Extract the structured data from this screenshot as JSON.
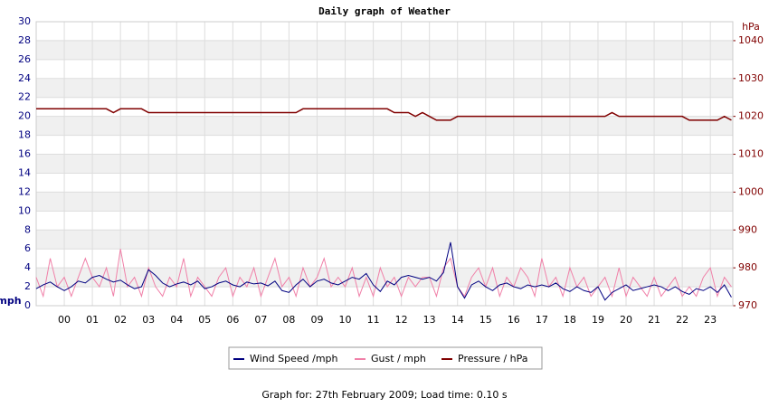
{
  "chart_data": {
    "type": "line",
    "title": "Daily graph of Weather",
    "y_label": "mph",
    "y2_label": "hPa",
    "footer": "Graph for: 27th February 2009; Load time: 0.10 s",
    "xlim": [
      -1,
      23.8
    ],
    "xticks": [
      {
        "value": 0,
        "label": "00"
      },
      {
        "value": 1,
        "label": "01"
      },
      {
        "value": 2,
        "label": "02"
      },
      {
        "value": 3,
        "label": "03"
      },
      {
        "value": 4,
        "label": "04"
      },
      {
        "value": 5,
        "label": "05"
      },
      {
        "value": 6,
        "label": "06"
      },
      {
        "value": 7,
        "label": "07"
      },
      {
        "value": 8,
        "label": "08"
      },
      {
        "value": 9,
        "label": "09"
      },
      10,
      11,
      12,
      13,
      14,
      15,
      16,
      17,
      18,
      19,
      20,
      21,
      22,
      23
    ],
    "ylim": [
      0,
      30
    ],
    "yticks": [
      0,
      2,
      4,
      6,
      8,
      10,
      12,
      14,
      16,
      18,
      20,
      22,
      24,
      26,
      28,
      30
    ],
    "y2lim": [
      970,
      1045
    ],
    "y2ticks": [
      970,
      980,
      990,
      1000,
      1010,
      1020,
      1030,
      1040
    ],
    "grid": true,
    "x": [
      -1,
      -0.75,
      -0.5,
      -0.25,
      0,
      0.25,
      0.5,
      0.75,
      1,
      1.25,
      1.5,
      1.75,
      2,
      2.25,
      2.5,
      2.75,
      3,
      3.25,
      3.5,
      3.75,
      4,
      4.25,
      4.5,
      4.75,
      5,
      5.25,
      5.5,
      5.75,
      6,
      6.25,
      6.5,
      6.75,
      7,
      7.25,
      7.5,
      7.75,
      8,
      8.25,
      8.5,
      8.75,
      9,
      9.25,
      9.5,
      9.75,
      10,
      10.25,
      10.5,
      10.75,
      11,
      11.25,
      11.5,
      11.75,
      12,
      12.25,
      12.5,
      12.75,
      13,
      13.25,
      13.5,
      13.75,
      14,
      14.25,
      14.5,
      14.75,
      15,
      15.25,
      15.5,
      15.75,
      16,
      16.25,
      16.5,
      16.75,
      17,
      17.25,
      17.5,
      17.75,
      18,
      18.25,
      18.5,
      18.75,
      19,
      19.25,
      19.5,
      19.75,
      20,
      20.25,
      20.5,
      20.75,
      21,
      21.25,
      21.5,
      21.75,
      22,
      22.25,
      22.5,
      22.75,
      23,
      23.25,
      23.5,
      23.75
    ],
    "series": [
      {
        "name": "Gust / mph",
        "color": "#f080a8",
        "values": [
          3,
          1,
          5,
          2,
          3,
          1,
          3,
          5,
          3,
          2,
          4,
          1,
          6,
          2,
          3,
          1,
          4,
          2,
          1,
          3,
          2,
          5,
          1,
          3,
          2,
          1,
          3,
          4,
          1,
          3,
          2,
          4,
          1,
          3,
          5,
          2,
          3,
          1,
          4,
          2,
          3,
          5,
          2,
          3,
          2,
          4,
          1,
          3,
          1,
          4,
          2,
          3,
          1,
          3,
          2,
          3,
          3,
          1,
          4,
          5,
          2,
          1,
          3,
          4,
          2,
          4,
          1,
          3,
          2,
          4,
          3,
          1,
          5,
          2,
          3,
          1,
          4,
          2,
          3,
          1,
          2,
          3,
          1,
          4,
          1,
          3,
          2,
          1,
          3,
          1,
          2,
          3,
          1,
          2,
          1,
          3,
          4,
          1,
          3,
          2
        ]
      },
      {
        "name": "Wind Speed /mph",
        "color": "#000080",
        "values": [
          1.8,
          2.2,
          2.5,
          2.0,
          1.6,
          2.0,
          2.6,
          2.4,
          3.0,
          3.2,
          2.8,
          2.5,
          2.7,
          2.2,
          1.8,
          2.0,
          3.8,
          3.2,
          2.4,
          2.0,
          2.3,
          2.5,
          2.2,
          2.6,
          1.8,
          2.0,
          2.4,
          2.6,
          2.2,
          2.0,
          2.5,
          2.3,
          2.4,
          2.1,
          2.6,
          1.6,
          1.4,
          2.2,
          2.8,
          2.0,
          2.6,
          2.8,
          2.4,
          2.2,
          2.6,
          3.0,
          2.8,
          3.4,
          2.2,
          1.5,
          2.6,
          2.2,
          3.0,
          3.2,
          3.0,
          2.8,
          3.0,
          2.6,
          3.5,
          6.7,
          2.0,
          0.8,
          2.2,
          2.6,
          2.0,
          1.6,
          2.2,
          2.4,
          2.0,
          1.8,
          2.2,
          2.0,
          2.2,
          2.0,
          2.4,
          1.8,
          1.5,
          2.0,
          1.6,
          1.4,
          2.0,
          0.6,
          1.4,
          1.8,
          2.2,
          1.6,
          1.8,
          2.0,
          2.2,
          2.0,
          1.6,
          2.0,
          1.5,
          1.2,
          1.8,
          1.6,
          2.0,
          1.4,
          2.2,
          0.9
        ]
      },
      {
        "name": "Pressure / hPa",
        "color": "#800000",
        "axis": "y2",
        "values": [
          1022,
          1022,
          1022,
          1022,
          1022,
          1022,
          1022,
          1022,
          1022,
          1022,
          1022,
          1021,
          1022,
          1022,
          1022,
          1022,
          1021,
          1021,
          1021,
          1021,
          1021,
          1021,
          1021,
          1021,
          1021,
          1021,
          1021,
          1021,
          1021,
          1021,
          1021,
          1021,
          1021,
          1021,
          1021,
          1021,
          1021,
          1021,
          1022,
          1022,
          1022,
          1022,
          1022,
          1022,
          1022,
          1022,
          1022,
          1022,
          1022,
          1022,
          1022,
          1021,
          1021,
          1021,
          1020,
          1021,
          1020,
          1019,
          1019,
          1019,
          1020,
          1020,
          1020,
          1020,
          1020,
          1020,
          1020,
          1020,
          1020,
          1020,
          1020,
          1020,
          1020,
          1020,
          1020,
          1020,
          1020,
          1020,
          1020,
          1020,
          1020,
          1020,
          1021,
          1020,
          1020,
          1020,
          1020,
          1020,
          1020,
          1020,
          1020,
          1020,
          1020,
          1019,
          1019,
          1019,
          1019,
          1019,
          1020,
          1019
        ]
      }
    ],
    "legend_order": [
      1,
      0,
      2
    ]
  }
}
